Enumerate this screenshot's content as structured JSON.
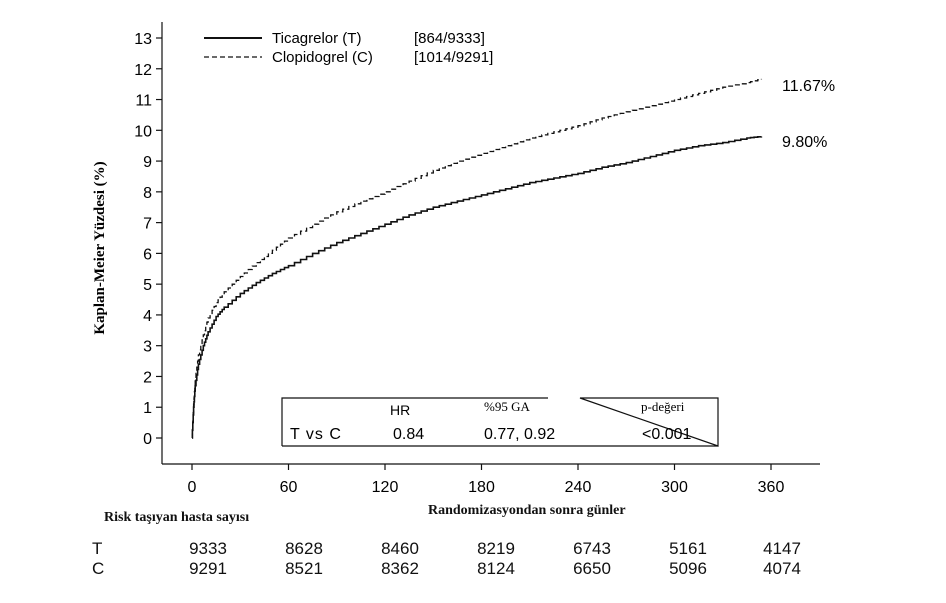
{
  "chart_data": {
    "type": "line",
    "ylabel": "Kaplan-Meier Yüzdesi (%)",
    "xlabel": "Randomizasyondan sonra günler",
    "xlim": [
      0,
      360
    ],
    "ylim": [
      0,
      13
    ],
    "x_ticks": [
      "0",
      "60",
      "120",
      "180",
      "240",
      "300",
      "360"
    ],
    "y_ticks": [
      "0",
      "1",
      "2",
      "3",
      "4",
      "5",
      "6",
      "7",
      "8",
      "9",
      "10",
      "11",
      "12",
      "13"
    ],
    "grid": false,
    "legend_position": "top-left",
    "series": [
      {
        "name": "Ticagrelor (T)",
        "count_label": "[864/9333]",
        "line_style": "solid",
        "end_label": "9.80%",
        "x": [
          0,
          1,
          2,
          4,
          7,
          10,
          15,
          20,
          30,
          40,
          50,
          60,
          75,
          90,
          105,
          120,
          135,
          150,
          165,
          180,
          195,
          210,
          225,
          240,
          255,
          270,
          285,
          300,
          315,
          330,
          345,
          354
        ],
        "values": [
          0,
          1.0,
          1.7,
          2.4,
          3.0,
          3.45,
          3.95,
          4.25,
          4.7,
          5.05,
          5.35,
          5.6,
          6.0,
          6.35,
          6.65,
          6.95,
          7.25,
          7.5,
          7.7,
          7.9,
          8.1,
          8.3,
          8.45,
          8.6,
          8.8,
          8.95,
          9.15,
          9.35,
          9.5,
          9.6,
          9.75,
          9.8
        ]
      },
      {
        "name": "Clopidogrel (C)",
        "count_label": "[1014/9291]",
        "line_style": "dashed",
        "end_label": "11.67%",
        "x": [
          0,
          1,
          2,
          4,
          7,
          10,
          15,
          20,
          30,
          40,
          50,
          60,
          75,
          90,
          105,
          120,
          135,
          150,
          165,
          180,
          195,
          210,
          225,
          240,
          255,
          270,
          285,
          300,
          315,
          330,
          345,
          354
        ],
        "values": [
          0,
          1.1,
          1.9,
          2.7,
          3.35,
          3.9,
          4.4,
          4.75,
          5.25,
          5.7,
          6.1,
          6.5,
          6.95,
          7.35,
          7.7,
          8.0,
          8.35,
          8.7,
          9.0,
          9.25,
          9.5,
          9.75,
          9.95,
          10.15,
          10.4,
          10.6,
          10.8,
          11.0,
          11.2,
          11.4,
          11.55,
          11.67
        ]
      }
    ],
    "stats_table": {
      "headers": [
        "HR",
        "%95 GA",
        "p-değeri"
      ],
      "row_label": "T vs C",
      "values": [
        "0.84",
        "0.77, 0.92",
        "<0.001"
      ]
    }
  },
  "risk_table": {
    "title": "Risk taşıyan hasta sayısı",
    "rows": [
      {
        "label": "T",
        "values": [
          "9333",
          "8628",
          "8460",
          "8219",
          "6743",
          "5161",
          "4147"
        ]
      },
      {
        "label": "C",
        "values": [
          "9291",
          "8521",
          "8362",
          "8124",
          "6650",
          "5096",
          "4074"
        ]
      }
    ]
  }
}
